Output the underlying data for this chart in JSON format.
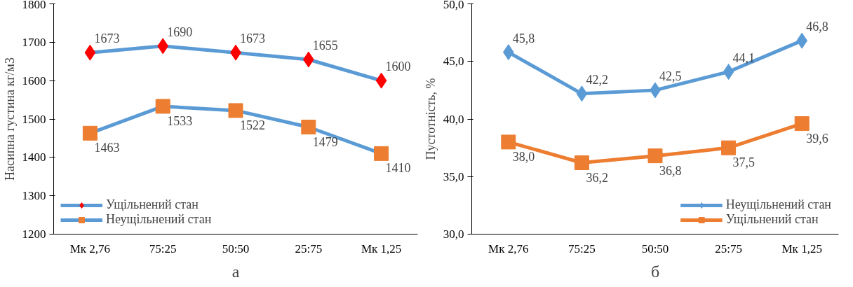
{
  "chart_data": [
    {
      "type": "line",
      "ylabel": "Насипна густина кг/м3",
      "categories": [
        "Мк 2,76",
        "75:25",
        "50:50",
        "25:75",
        "Мк 1,25"
      ],
      "ylim": [
        1200,
        1800
      ],
      "yticks": [
        1200,
        1300,
        1400,
        1500,
        1600,
        1700,
        1800
      ],
      "grid": false,
      "legend": "bottom left",
      "data_labels": true,
      "annotations": [
        "а"
      ],
      "series": [
        {
          "name": "Ущільнений стан",
          "color": "#5b9bd5",
          "colors": [
            "#ff0000",
            "#ff0000",
            "#ff0000",
            "#ff0000",
            "#ff0000"
          ],
          "marker": "diamond",
          "values": [
            1673,
            1690,
            1673,
            1655,
            1600
          ]
        },
        {
          "name": "Неущільнений стан",
          "color": "#5b9bd5",
          "colors": [
            "#ed7d31",
            "#ed7d31",
            "#ed7d31",
            "#ed7d31",
            "#ed7d31"
          ],
          "marker": "square",
          "values": [
            1463,
            1533,
            1522,
            1479,
            1410
          ]
        }
      ]
    },
    {
      "type": "line",
      "ylabel": "Пустотність, %",
      "categories": [
        "Мк 2,76",
        "75:25",
        "50:50",
        "25:75",
        "Мк 1,25"
      ],
      "ylim": [
        30,
        50
      ],
      "yticks": [
        {
          "value": 30,
          "label": "30,0"
        },
        {
          "value": 35,
          "label": "35,0"
        },
        {
          "value": 40,
          "label": "40,0"
        },
        {
          "value": 45,
          "label": "45,0"
        },
        {
          "value": 50,
          "label": "50,0"
        }
      ],
      "grid": false,
      "legend": "bottom right",
      "annotations": [
        "б"
      ],
      "series": [
        {
          "name": "Неущільнений стан",
          "color": "#5b9bd5",
          "marker": "diamond",
          "values": [
            45.8,
            42.2,
            42.5,
            44.1,
            46.8
          ],
          "value_labels": [
            "45,8",
            "42,2",
            "42,5",
            "44,1",
            "46,8"
          ]
        },
        {
          "name": "Ущільнений стан",
          "color": "#ed7d31",
          "marker": "square",
          "values": [
            38.0,
            36.2,
            36.8,
            37.5,
            39.6
          ],
          "value_labels": [
            "38,0",
            "36,2",
            "36,8",
            "37,5",
            "39,6"
          ]
        }
      ]
    }
  ]
}
